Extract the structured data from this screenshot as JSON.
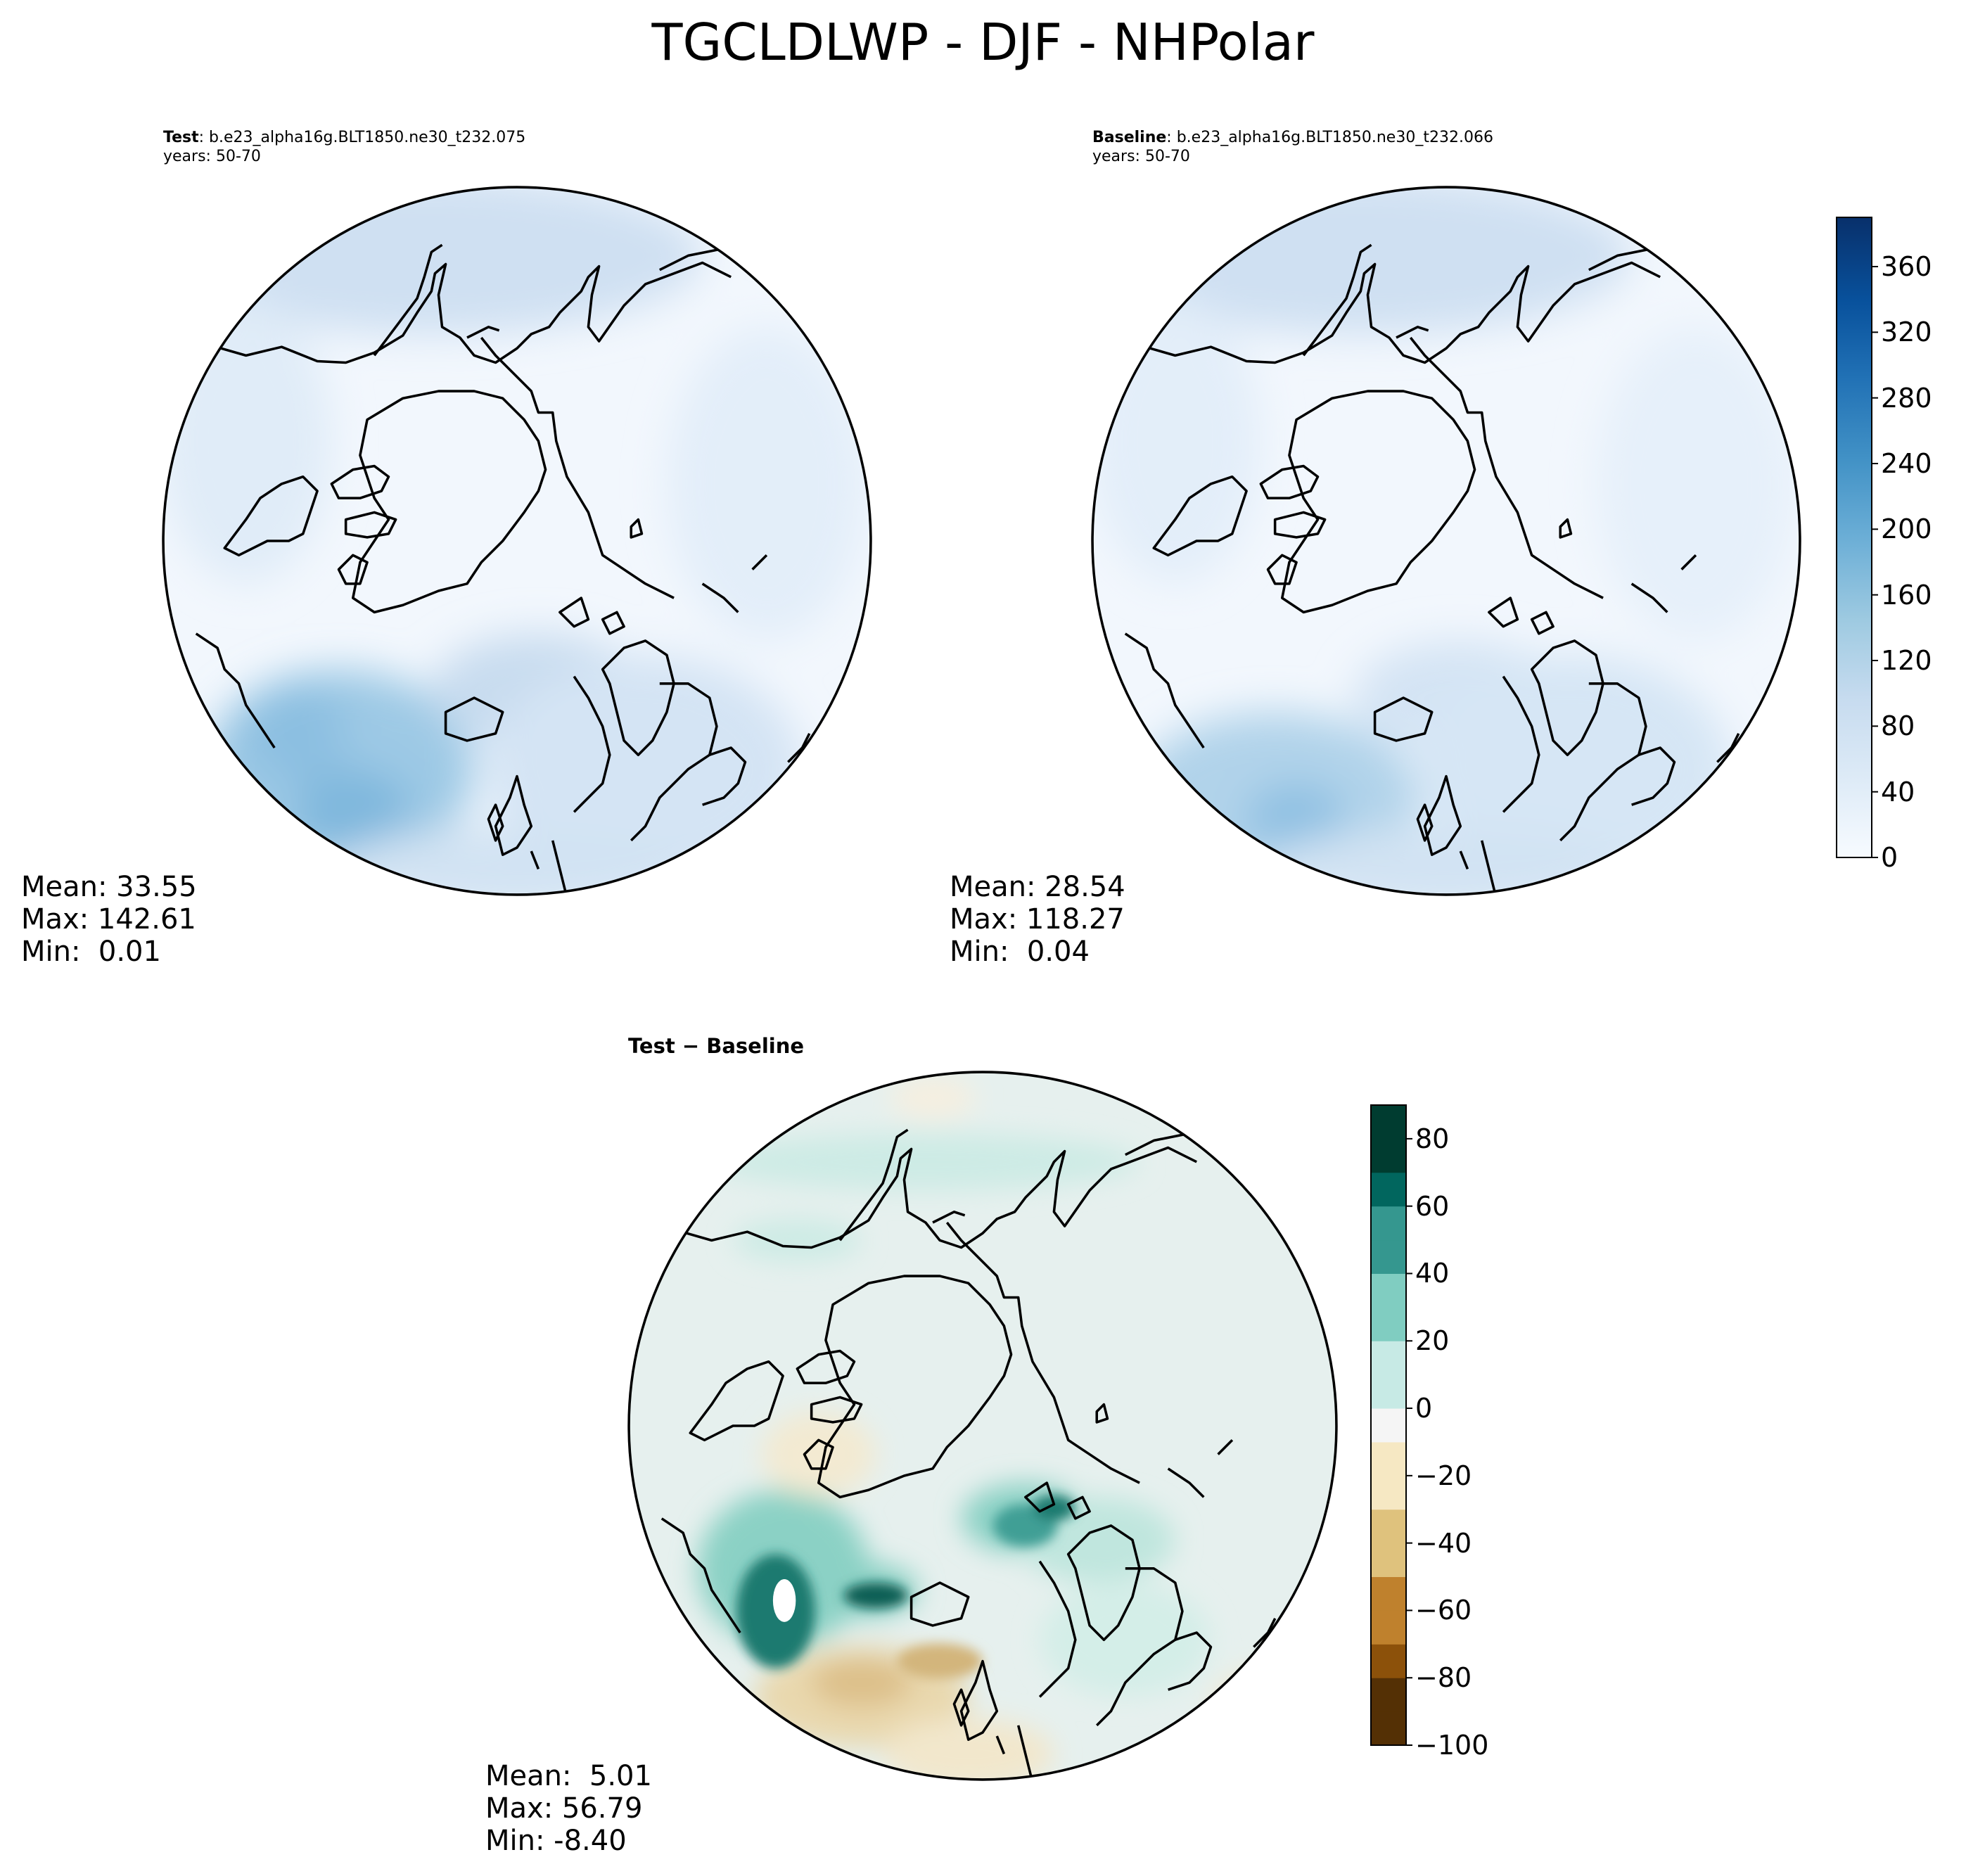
{
  "suptitle": "TGCLDLWP - DJF - NHPolar",
  "test": {
    "label": "Test",
    "case": ": b.e23_alpha16g.BLT1850.ne30_t232.075",
    "years": "years: 50-70",
    "stats": {
      "mean": "Mean: 33.55",
      "max": "Max: 142.61",
      "min": "Min:  0.01"
    }
  },
  "baseline": {
    "label": "Baseline",
    "case": ": b.e23_alpha16g.BLT1850.ne30_t232.066",
    "years": "years: 50-70",
    "stats": {
      "mean": "Mean: 28.54",
      "max": "Max: 118.27",
      "min": "Min:  0.04"
    }
  },
  "diff": {
    "title": "Test − Baseline",
    "stats": {
      "mean": "Mean:  5.01",
      "max": "Max: 56.79",
      "min": "Min: -8.40"
    }
  },
  "colorbar_main": {
    "cmap": "Blues",
    "range": [
      0,
      390
    ],
    "ticks": [
      "0",
      "40",
      "80",
      "120",
      "160",
      "200",
      "240",
      "280",
      "320",
      "360"
    ],
    "colors": [
      "#f7fbff",
      "#deebf7",
      "#c6dbef",
      "#9ecae1",
      "#6baed6",
      "#4292c6",
      "#2171b5",
      "#08519c",
      "#08306b"
    ]
  },
  "colorbar_diff": {
    "cmap": "BrBG",
    "range": [
      -100,
      90
    ],
    "ticks": [
      "80",
      "60",
      "40",
      "20",
      "0",
      "−20",
      "−40",
      "−60",
      "−80",
      "−100"
    ],
    "colors": [
      "#003c30",
      "#01665e",
      "#35978f",
      "#80cdc1",
      "#c7eae5",
      "#f5f5f5",
      "#f6e8c3",
      "#dfc27d",
      "#bf812d",
      "#8c510a",
      "#543005"
    ]
  }
}
